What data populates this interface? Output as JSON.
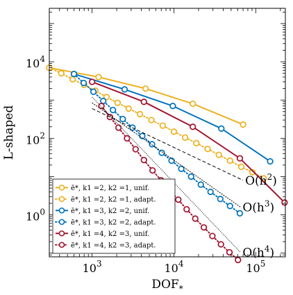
{
  "chart_data": {
    "type": "line",
    "xlabel": "DOF",
    "xlabel_sub": "*",
    "ylabel": "L-shaped",
    "x_scale": "log",
    "y_scale": "log",
    "xlim": [
      300,
      230000
    ],
    "ylim": [
      0.08,
      250000
    ],
    "x_ticks": [
      {
        "value": 1000,
        "base": "10",
        "exp": "3"
      },
      {
        "value": 10000,
        "base": "10",
        "exp": "4"
      },
      {
        "value": 100000,
        "base": "10",
        "exp": "5"
      }
    ],
    "y_ticks": [
      {
        "value": 1,
        "base": "10",
        "exp": "0"
      },
      {
        "value": 100,
        "base": "10",
        "exp": "2"
      },
      {
        "value": 10000,
        "base": "10",
        "exp": "4"
      }
    ],
    "grid": false,
    "legend_position": "bottom-left",
    "series": [
      {
        "name": "ē*, k1 =2, k2 =1, unif.",
        "color": "#EDB120",
        "linestyle": "solid",
        "x": [
          300,
          1200,
          4500,
          17000,
          70000
        ],
        "y": [
          7000,
          4000,
          2000,
          800,
          230
        ]
      },
      {
        "name": "ē*, k1 =2, k2 =1, adapt.",
        "color": "#EDB120",
        "linestyle": "dotted",
        "x": [
          300,
          420,
          580,
          800,
          1100,
          1500,
          2050,
          2800,
          3850,
          5300,
          7300,
          10000,
          13700,
          18800,
          25800,
          35400,
          48500,
          66500,
          91000,
          125000
        ],
        "y": [
          7000,
          5000,
          3500,
          2500,
          1750,
          1200,
          850,
          600,
          430,
          300,
          215,
          150,
          105,
          75,
          53,
          37,
          26,
          18,
          13,
          9
        ]
      },
      {
        "name": "ē*, k1 =3, k2 =2, unif.",
        "color": "#0072BD",
        "linestyle": "solid",
        "x": [
          600,
          2500,
          9700,
          38000,
          150000
        ],
        "y": [
          4800,
          1900,
          700,
          180,
          25
        ]
      },
      {
        "name": "ē*, k1 =3, k2 =2, adapt.",
        "color": "#0072BD",
        "linestyle": "dotted",
        "x": [
          600,
          790,
          1040,
          1370,
          1800,
          2370,
          3120,
          4100,
          5400,
          7100,
          9350,
          12300,
          16200,
          21300,
          28000,
          36900,
          48500,
          63800
        ],
        "y": [
          4800,
          2800,
          1650,
          950,
          550,
          320,
          190,
          115,
          70,
          42,
          26,
          16,
          10,
          6.2,
          4,
          2.6,
          1.7,
          1.1
        ]
      },
      {
        "name": "ē*, k1 =4, k2 =3, unif.",
        "color": "#A2142F",
        "linestyle": "solid",
        "x": [
          1000,
          4300,
          17000,
          64000,
          225000
        ],
        "y": [
          3000,
          900,
          200,
          30,
          2.1
        ]
      },
      {
        "name": "ē*, k1 =4, k2 =3, adapt.",
        "color": "#A2142F",
        "linestyle": "dotted",
        "x": [
          1300,
          1650,
          2100,
          2670,
          3400,
          4300,
          5480,
          6970,
          8870,
          11300,
          14300,
          18200,
          23200,
          29500,
          37500,
          47700,
          60700
        ],
        "y": [
          700,
          360,
          190,
          100,
          52,
          27,
          14.5,
          8,
          4.4,
          2.5,
          1.4,
          0.8,
          0.47,
          0.28,
          0.17,
          0.105,
          0.066
        ]
      }
    ],
    "reference_lines": [
      {
        "label": "O(h",
        "exp": "2",
        "x": [
          1000,
          70000
        ],
        "y": [
          600,
          8
        ]
      },
      {
        "label": "O(h",
        "exp": "3",
        "x": [
          1000,
          65000
        ],
        "y": [
          850,
          1.6
        ]
      },
      {
        "label": "O(h",
        "exp": "4",
        "x": [
          1000,
          65000
        ],
        "y": [
          1200,
          0.105
        ]
      }
    ]
  }
}
